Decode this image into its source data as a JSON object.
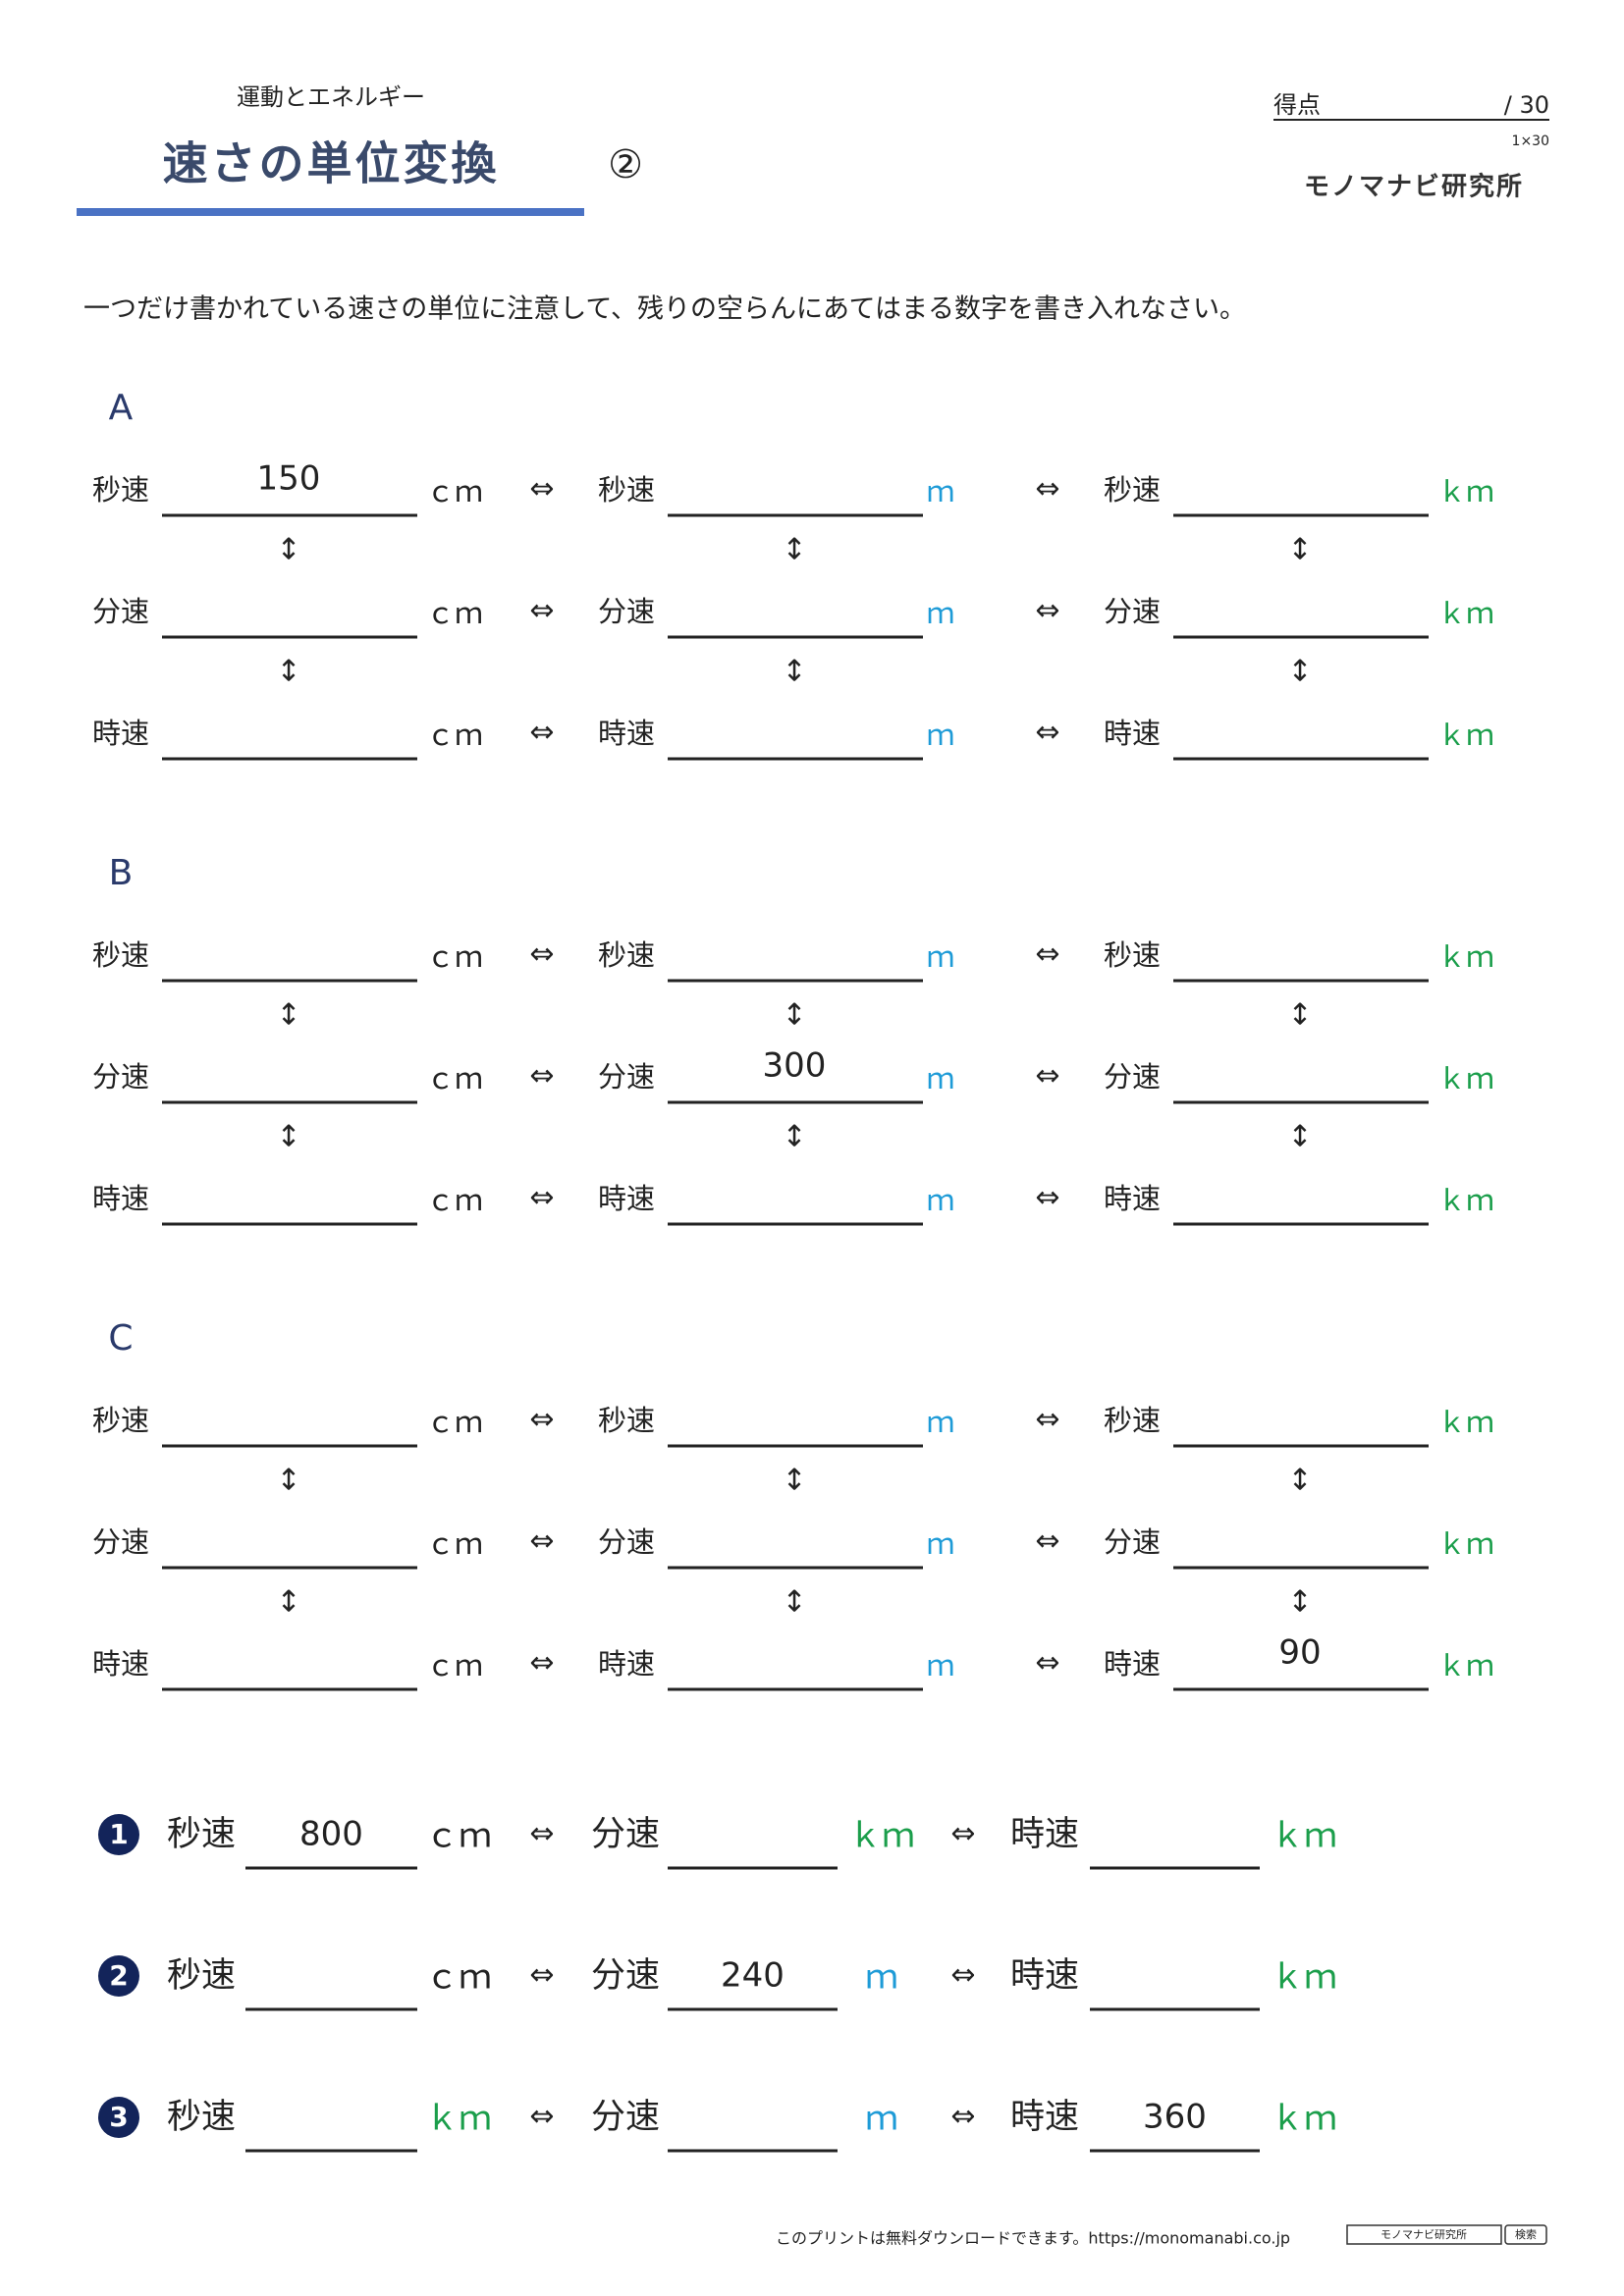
{
  "header": {
    "subtitle": "運動とエネルギー",
    "title": "速さの単位変換",
    "number": "②",
    "score_label": "得点",
    "score_total": "/ 30",
    "score_note": "1×30",
    "brand": "モノマナビ研究所"
  },
  "instructions": "一つだけ書かれている速さの単位に注意して、残りの空らんにあてはまる数字を書き入れなさい。",
  "symbols": {
    "equivalent": "⇔",
    "vertical": "↕"
  },
  "grid_columns": [
    {
      "unit": "ｃｍ",
      "color": "#222222"
    },
    {
      "unit": "ｍ",
      "color": "#1e9bd7"
    },
    {
      "unit": "ｋｍ",
      "color": "#1b9e4b"
    }
  ],
  "row_labels": [
    "秒速",
    "分速",
    "時速"
  ],
  "sections": [
    {
      "label": "A",
      "values": [
        [
          150,
          null,
          null
        ],
        [
          null,
          null,
          null
        ],
        [
          null,
          null,
          null
        ]
      ]
    },
    {
      "label": "B",
      "values": [
        [
          null,
          null,
          null
        ],
        [
          null,
          300,
          null
        ],
        [
          null,
          null,
          null
        ]
      ]
    },
    {
      "label": "C",
      "values": [
        [
          null,
          null,
          null
        ],
        [
          null,
          null,
          null
        ],
        [
          null,
          null,
          90
        ]
      ]
    }
  ],
  "problems": [
    {
      "number": "1",
      "cells": [
        {
          "label": "秒速",
          "value": 800,
          "unit": "ｃｍ",
          "color": "#222222"
        },
        {
          "label": "分速",
          "value": null,
          "unit": "ｋｍ",
          "color": "#1b9e4b"
        },
        {
          "label": "時速",
          "value": null,
          "unit": "ｋｍ",
          "color": "#1b9e4b"
        }
      ]
    },
    {
      "number": "2",
      "cells": [
        {
          "label": "秒速",
          "value": null,
          "unit": "ｃｍ",
          "color": "#222222"
        },
        {
          "label": "分速",
          "value": 240,
          "unit": "ｍ",
          "color": "#1e9bd7"
        },
        {
          "label": "時速",
          "value": null,
          "unit": "ｋｍ",
          "color": "#1b9e4b"
        }
      ]
    },
    {
      "number": "3",
      "cells": [
        {
          "label": "秒速",
          "value": null,
          "unit": "ｋｍ",
          "color": "#1b9e4b"
        },
        {
          "label": "分速",
          "value": null,
          "unit": "ｍ",
          "color": "#1e9bd7"
        },
        {
          "label": "時速",
          "value": 360,
          "unit": "ｋｍ",
          "color": "#1b9e4b"
        }
      ]
    }
  ],
  "footer": {
    "text": "このプリントは無料ダウンロードできます。https://monomanabi.co.jp",
    "search_text": "モノマナビ研究所",
    "search_button": "検索"
  }
}
